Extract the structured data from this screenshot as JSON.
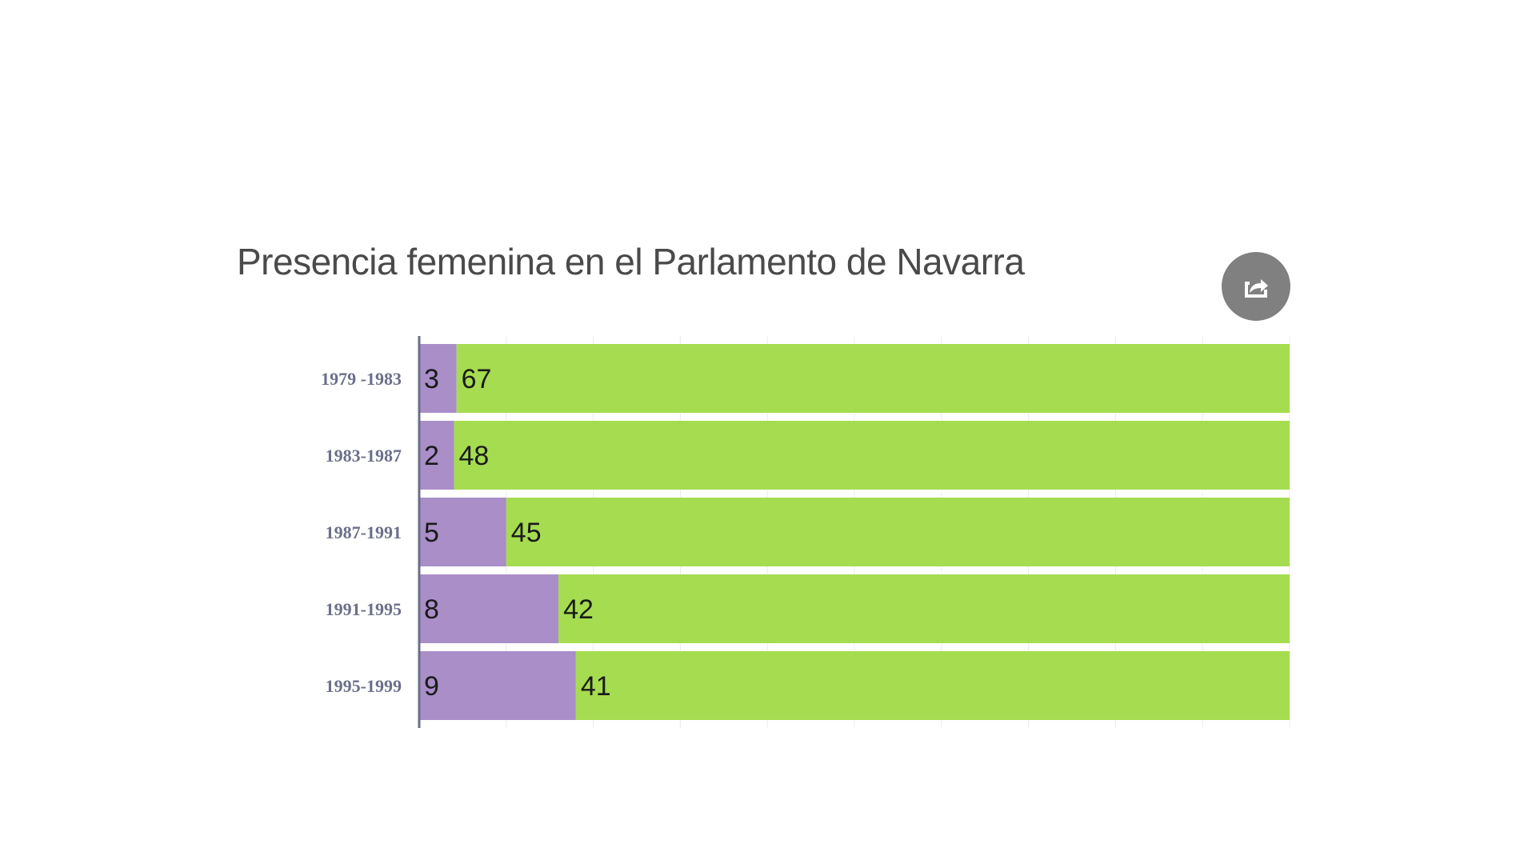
{
  "chart_data": {
    "type": "bar",
    "orientation": "horizontal",
    "stacked": true,
    "normalized_percent": true,
    "title": "Presencia femenina en el Parlamento de Navarra",
    "categories": [
      "1979 -1983",
      "1983-1987",
      "1987-1991",
      "1991-1995",
      "1995-1999"
    ],
    "series": [
      {
        "values": [
          3,
          2,
          5,
          8,
          9
        ],
        "color": "#a98ec8"
      },
      {
        "values": [
          67,
          48,
          45,
          42,
          41
        ],
        "color": "#a6dc50"
      }
    ],
    "xlim": [
      0,
      100
    ],
    "grid": true,
    "legend": "none"
  },
  "colors": {
    "title": "#4a4a4a",
    "category_label": "#6b6f8a",
    "value_label": "#1a1a1a",
    "axis": "#6b6f8a",
    "share_button": "#808080"
  },
  "share_button": {
    "icon": "share-icon"
  }
}
